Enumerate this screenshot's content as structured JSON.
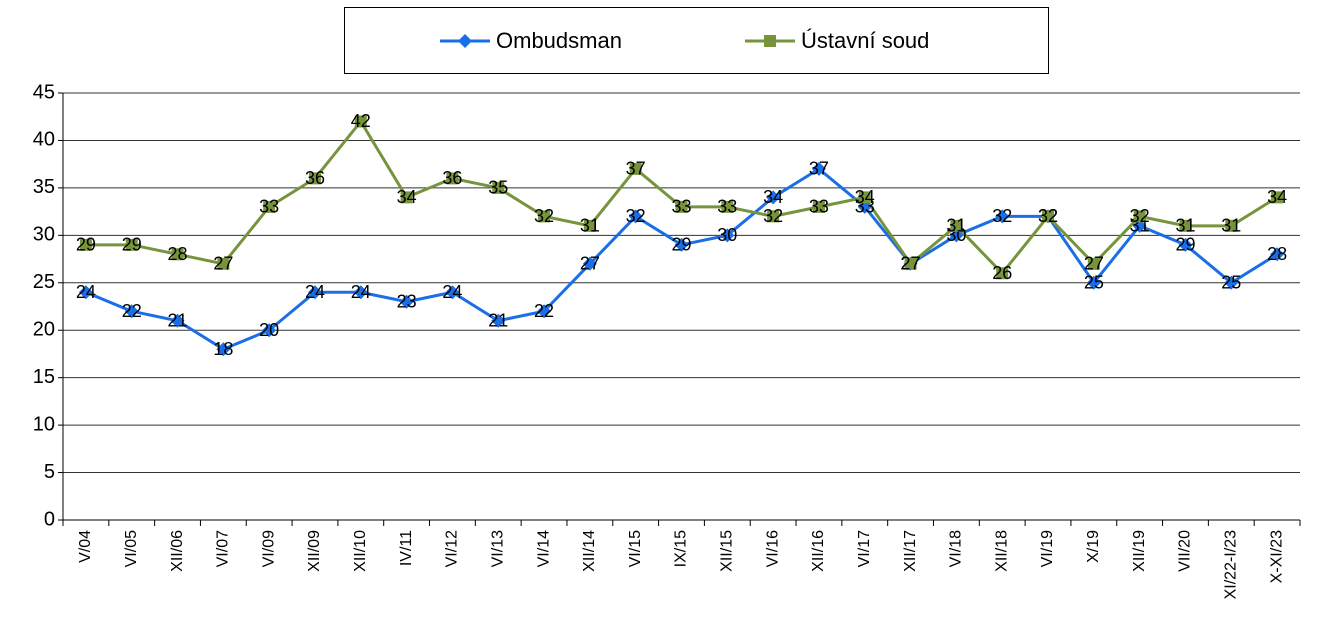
{
  "chart_data": {
    "type": "line",
    "categories": [
      "V/04",
      "VI/05",
      "XII/06",
      "VI/07",
      "VI/09",
      "XII/09",
      "XII/10",
      "IV/11",
      "VI/12",
      "VI/13",
      "VI/14",
      "XII/14",
      "VI/15",
      "IX/15",
      "XII/15",
      "VI/16",
      "XII/16",
      "VI/17",
      "XII/17",
      "VI/18",
      "XII/18",
      "VI/19",
      "X/19",
      "XII/19",
      "VII/20",
      "XI/22-I/23",
      "X-XI/23"
    ],
    "series": [
      {
        "name": "Ombudsman",
        "color": "#1a6ee8",
        "marker": "diamond",
        "values": [
          24,
          22,
          21,
          18,
          20,
          24,
          24,
          23,
          24,
          21,
          22,
          27,
          32,
          29,
          30,
          34,
          37,
          33,
          27,
          30,
          32,
          32,
          25,
          31,
          29,
          25,
          28
        ]
      },
      {
        "name": "Ústavní soud",
        "color": "#77933c",
        "marker": "square",
        "values": [
          29,
          29,
          28,
          27,
          33,
          36,
          42,
          34,
          36,
          35,
          32,
          31,
          37,
          33,
          33,
          32,
          33,
          34,
          27,
          31,
          26,
          32,
          27,
          32,
          31,
          31,
          34
        ]
      }
    ],
    "ylim": [
      0,
      45
    ],
    "yticks": [
      0,
      5,
      10,
      15,
      20,
      25,
      30,
      35,
      40,
      45
    ],
    "grid": true,
    "legend": "top"
  }
}
